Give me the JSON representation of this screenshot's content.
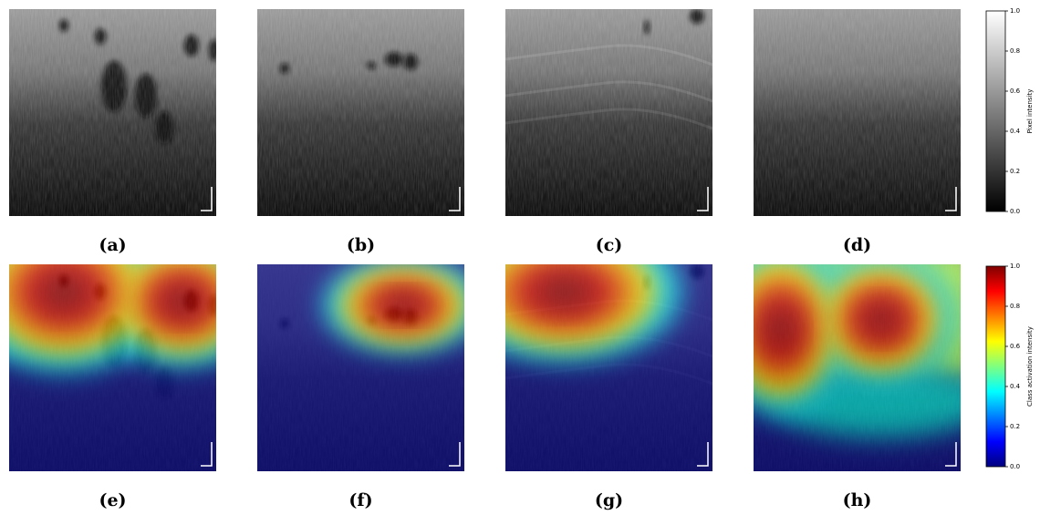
{
  "panels": [
    {
      "label": "(a)"
    },
    {
      "label": "(b)"
    },
    {
      "label": "(c)"
    },
    {
      "label": "(d)"
    },
    {
      "label": "(e)"
    },
    {
      "label": "(f)"
    },
    {
      "label": "(g)"
    },
    {
      "label": "(h)"
    }
  ],
  "colorbars": [
    {
      "label": "Pixel intensity",
      "lim": [
        0,
        1
      ],
      "ticks": [
        {
          "value": 0,
          "label": "0.0"
        },
        {
          "value": 0.2,
          "label": "0.2"
        },
        {
          "value": 0.4,
          "label": "0.4"
        },
        {
          "value": 0.6,
          "label": "0.6"
        },
        {
          "value": 0.8,
          "label": "0.8"
        },
        {
          "value": 1,
          "label": "1.0"
        }
      ]
    },
    {
      "label": "Class activation intensity",
      "lim": [
        0,
        1
      ],
      "ticks": [
        {
          "value": 0,
          "label": "0.0"
        },
        {
          "value": 0.2,
          "label": "0.2"
        },
        {
          "value": 0.4,
          "label": "0.4"
        },
        {
          "value": 0.6,
          "label": "0.6"
        },
        {
          "value": 0.8,
          "label": "0.8"
        },
        {
          "value": 1,
          "label": "1.0"
        }
      ]
    }
  ]
}
